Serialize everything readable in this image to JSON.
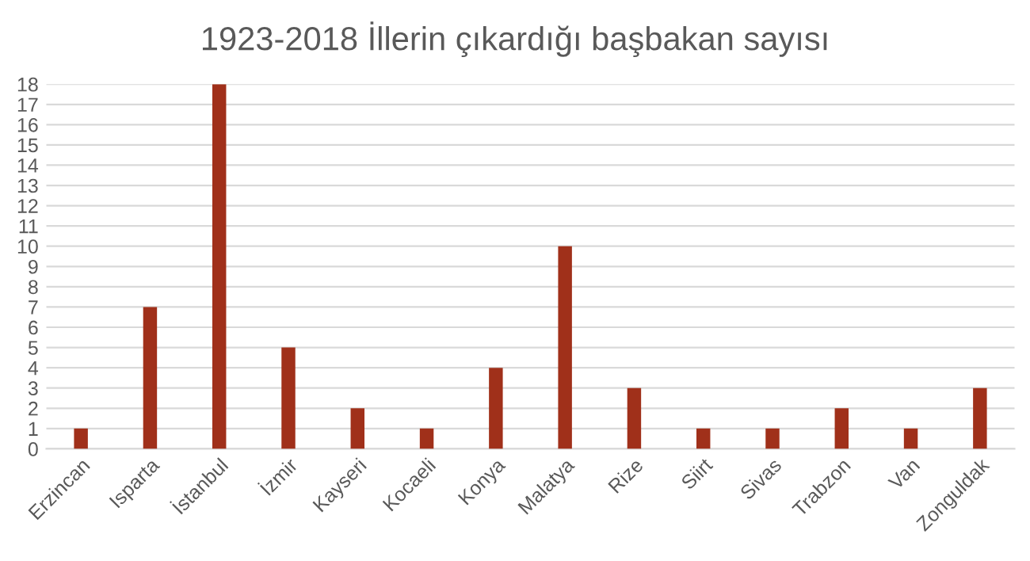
{
  "chart_data": {
    "type": "bar",
    "title": "1923-2018 İllerin çıkardığı başbakan sayısı",
    "categories": [
      "Erzincan",
      "Isparta",
      "İstanbul",
      "İzmir",
      "Kayseri",
      "Kocaeli",
      "Konya",
      "Malatya",
      "Rize",
      "Siirt",
      "Sivas",
      "Trabzon",
      "Van",
      "Zonguldak"
    ],
    "values": [
      1,
      7,
      18,
      5,
      2,
      1,
      4,
      10,
      3,
      1,
      1,
      2,
      1,
      3
    ],
    "color": "#a0301a",
    "ylim": [
      0,
      18
    ],
    "yticks": [
      0,
      1,
      2,
      3,
      4,
      5,
      6,
      7,
      8,
      9,
      10,
      11,
      12,
      13,
      14,
      15,
      16,
      17,
      18
    ],
    "grid": "y"
  }
}
